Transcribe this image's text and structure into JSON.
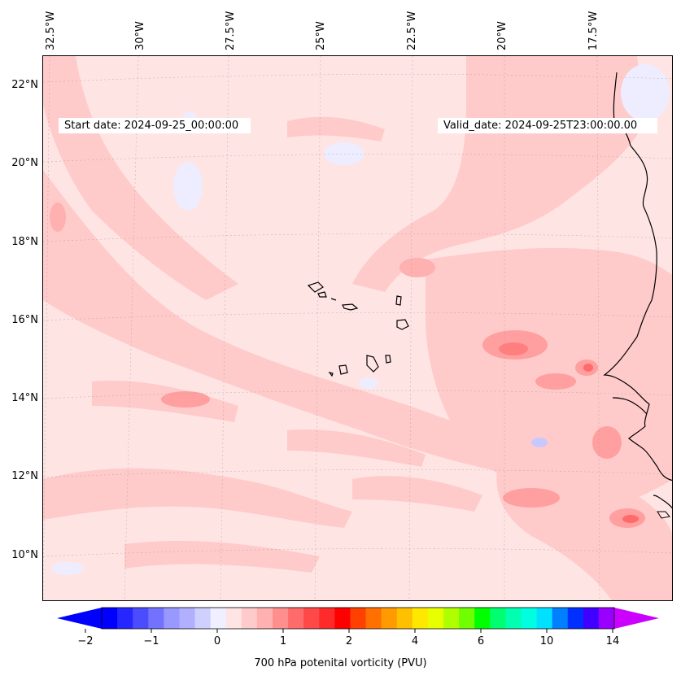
{
  "map": {
    "longitude_labels": [
      "32.5°W",
      "30°W",
      "27.5°W",
      "25°W",
      "22.5°W",
      "20°W",
      "17.5°W"
    ],
    "latitude_labels": [
      "22°N",
      "20°N",
      "18°N",
      "16°N",
      "14°N",
      "12°N",
      "10°N"
    ],
    "start_date": "Start date: 2024-09-25_00:00:00",
    "valid_date": "Valid_date: 2024-09-25T23:00:00.00",
    "field": "700 hPa potential vorticity",
    "colors": {
      "background_light_pink": "#ffe4e4",
      "mid_pink": "#ffcaca",
      "strong_pink": "#ff9f9f",
      "pale_blue": "#ededff",
      "coastline": "#000000"
    }
  },
  "colorbar": {
    "label": "700 hPa potenital vorticity (PVU)",
    "tick_labels": [
      "−2",
      "−1",
      "0",
      "1",
      "2",
      "4",
      "6",
      "10",
      "14"
    ],
    "colors": [
      "#0000ff",
      "#2626ff",
      "#4c4cff",
      "#7272ff",
      "#9898ff",
      "#b0b0ff",
      "#d0d0ff",
      "#efefff",
      "#ffe4e4",
      "#ffcaca",
      "#ffb0b0",
      "#ff8f8f",
      "#ff6a6a",
      "#ff4848",
      "#ff2b2b",
      "#ff0000",
      "#ff4000",
      "#ff7000",
      "#ff9a00",
      "#ffc000",
      "#ffe800",
      "#e8ff00",
      "#b0ff00",
      "#70ff00",
      "#00ff00",
      "#00ff70",
      "#00ffb0",
      "#00ffe0",
      "#00e0ff",
      "#0080ff",
      "#0030ff",
      "#4000ff",
      "#9a00ff"
    ]
  }
}
